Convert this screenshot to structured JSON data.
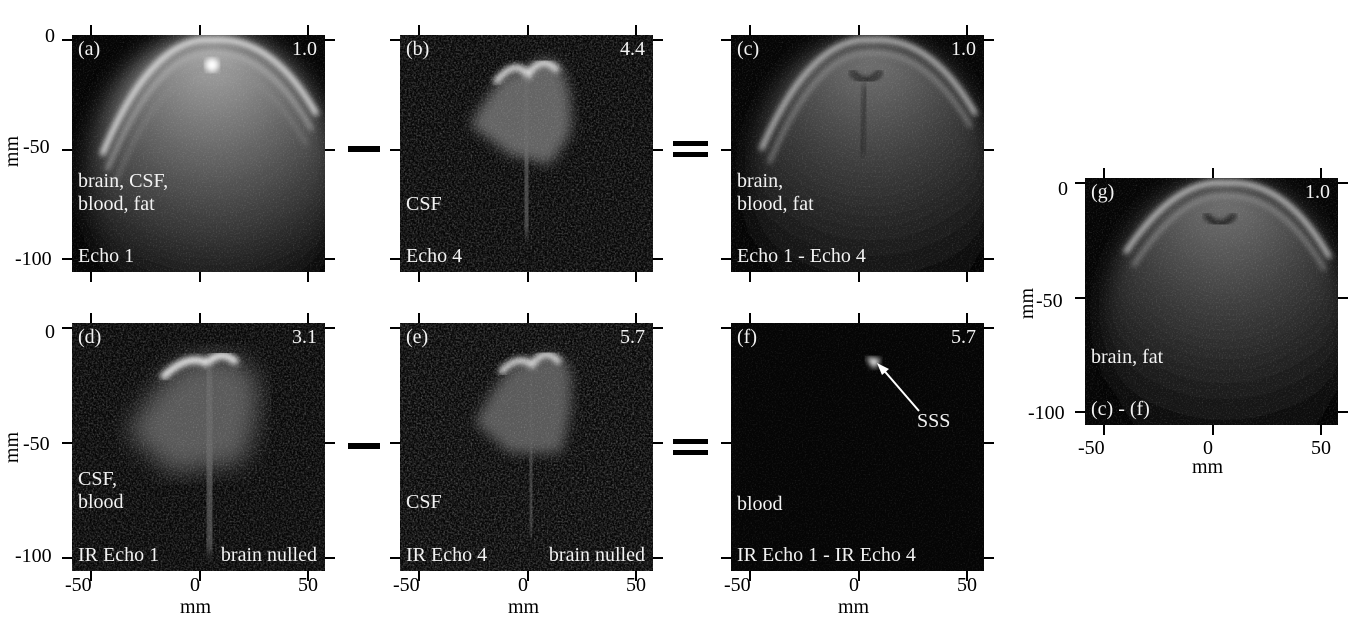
{
  "axis_unit": "mm",
  "y_ticks": [
    "0",
    "-50",
    "-100"
  ],
  "x_ticks": [
    "-50",
    "0",
    "50"
  ],
  "panels": {
    "a": {
      "label": "(a)",
      "scale": "1.0",
      "desc": "brain, CSF,\nblood, fat",
      "bottom_left": "Echo 1"
    },
    "b": {
      "label": "(b)",
      "scale": "4.4",
      "desc": "CSF",
      "bottom_left": "Echo 4"
    },
    "c": {
      "label": "(c)",
      "scale": "1.0",
      "desc": "brain,\nblood, fat",
      "bottom_left": "Echo 1 - Echo 4"
    },
    "d": {
      "label": "(d)",
      "scale": "3.1",
      "desc": "CSF,\nblood",
      "bottom_left": "IR Echo 1",
      "bottom_right": "brain nulled"
    },
    "e": {
      "label": "(e)",
      "scale": "5.7",
      "desc": "CSF",
      "bottom_left": "IR Echo 4",
      "bottom_right": "brain nulled"
    },
    "f": {
      "label": "(f)",
      "scale": "5.7",
      "desc": "blood",
      "bottom_left": "IR Echo 1 - IR Echo 4",
      "annotation": "SSS"
    },
    "g": {
      "label": "(g)",
      "scale": "1.0",
      "desc": "brain, fat",
      "bottom_left": "(c) - (f)"
    }
  }
}
